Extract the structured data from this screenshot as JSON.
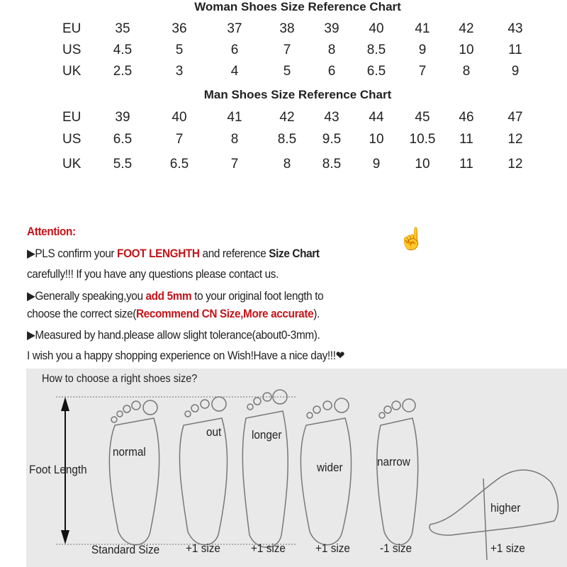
{
  "woman_chart": {
    "title": "Woman Shoes Size Reference Chart",
    "rows": [
      {
        "label": "EU",
        "values": [
          "35",
          "36",
          "37",
          "38",
          "39",
          "40",
          "41",
          "42",
          "43"
        ]
      },
      {
        "label": "US",
        "values": [
          "4.5",
          "5",
          "6",
          "7",
          "8",
          "8.5",
          "9",
          "10",
          "11"
        ]
      },
      {
        "label": "UK",
        "values": [
          "2.5",
          "3",
          "4",
          "5",
          "6",
          "6.5",
          "7",
          "8",
          "9"
        ]
      }
    ]
  },
  "man_chart": {
    "title": "Man Shoes Size Reference Chart",
    "rows": [
      {
        "label": "EU",
        "values": [
          "39",
          "40",
          "41",
          "42",
          "43",
          "44",
          "45",
          "46",
          "47"
        ]
      },
      {
        "label": "US",
        "values": [
          "6.5",
          "7",
          "8",
          "8.5",
          "9.5",
          "10",
          "10.5",
          "11",
          "12"
        ]
      },
      {
        "label": "UK",
        "values": [
          "5.5",
          "6.5",
          "7",
          "8",
          "8.5",
          "9",
          "10",
          "11",
          "12"
        ]
      }
    ]
  },
  "attention": {
    "heading": "Attention:",
    "l1a": "▶PLS confirm your ",
    "l1b": "FOOT LENGHTH",
    "l1c": " and reference ",
    "l1d": "Size Chart",
    "l2": "carefully!!! If you have any questions please contact us.",
    "l3a": "▶Generally speaking,you ",
    "l3b": "add 5mm",
    "l3c": " to your original foot length to",
    "l4a": "choose the correct size(",
    "l4b": "Recommend CN Size,More accurate",
    "l4c": ").",
    "l5": "▶Measured by hand.please allow slight tolerance(about0-3mm).",
    "l6": "I wish you a happy shopping experience on Wish!Have a nice day!!!❤"
  },
  "guide": {
    "title": "How to choose a right shoes size?",
    "axis_label": "Foot Length",
    "feet": [
      {
        "label": "normal",
        "size": "Standard Size"
      },
      {
        "label": "out",
        "size": "+1 size"
      },
      {
        "label": "longer",
        "size": "+1 size"
      },
      {
        "label": "wider",
        "size": "+1 size"
      },
      {
        "label": "narrow",
        "size": "-1 size"
      },
      {
        "label": "higher",
        "size": "+1 size"
      }
    ]
  },
  "colors": {
    "accent_red": "#c0161b",
    "panel": "#e9e9e9"
  }
}
